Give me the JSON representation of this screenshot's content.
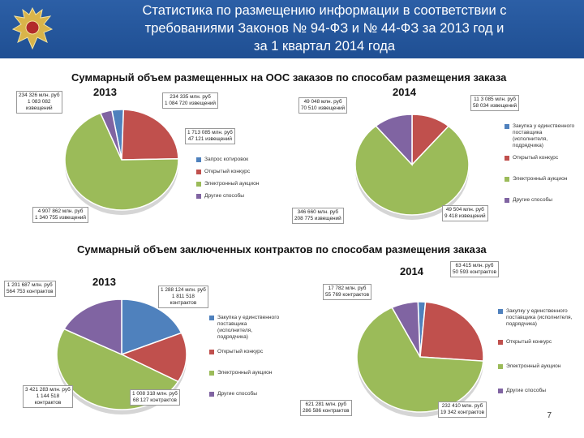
{
  "header": {
    "title_line1": "Статистика по размещению информации в соответствии с",
    "title_line2": "требованиями Законов № 94-ФЗ и № 44-ФЗ за 2013 год и",
    "title_line3": "за 1 квартал 2014 года"
  },
  "colors": {
    "header_bg": "#2c5fa6",
    "series": [
      "#4f81bd",
      "#c0504d",
      "#9bbb59",
      "#8064a2"
    ]
  },
  "section1": {
    "title": "Суммарный объем размещенных на ООС заказов по способам размещения заказа",
    "year_left": "2013",
    "year_right": "2014",
    "legend_left": [
      "Запрос котировок",
      "Открытый конкурс",
      "Электронный аукцион",
      "Другие способы"
    ],
    "legend_right": [
      "Закупка у единственного поставщика (исполнителя, подрядчика)",
      "Открытый конкурс",
      "Электронный аукцион",
      "Другие способы"
    ],
    "labels_left": [
      "234 326 млн. руб\n1 083 082\nизвещений",
      "234 335 млн. руб\n1 084 720 извещений",
      "1 713 085 млн. руб\n47 121 извещений",
      "4 907 862 млн. руб\n1 340 755 извещений"
    ],
    "labels_right": [
      "49 048 млн. руб\n70 510 извещений",
      "11 3 085 млн. руб\n58 034 извещений",
      "346 660 млн. руб\n208 775 извещений",
      "49 504 млн. руб\n9 418 извещений"
    ]
  },
  "section2": {
    "title": "Суммарный объем заключенных контрактов по способам размещения заказа",
    "year_left": "2013",
    "year_right": "2014",
    "legend_left": [
      "Закупка у единственного поставщика (исполнителя, подрядчика)",
      "Открытый конкурс",
      "Электронный аукцион",
      "Другие способы"
    ],
    "legend_right": [
      "Закупку у единственного поставщика (исполнителя, подрядчика)",
      "Открытый конкурс",
      "Электронный аукцион",
      "Другие способы"
    ],
    "labels_left": [
      "1 201 687 млн. руб\n564 753 контрактов",
      "1 288 124 млн. руб\n1 811 518\nконтрактов",
      "3 421 283 млн. руб\n1 144 518\nконтрактов",
      "1 008 318 млн. руб\n68 127 контрактов"
    ],
    "labels_right": [
      "63 415 млн. руб\n50 593 контрактов",
      "17 782 млн. руб\n55 769 контрактов",
      "621 281 млн. руб\n286 586 контрактов",
      "232 410 млн. руб\n19 342 контрактов"
    ]
  },
  "chart_data": [
    {
      "type": "pie",
      "title": "Суммарный объем размещенных на ООС заказов по способам размещения заказа",
      "subtitle": "2013",
      "categories": [
        "Запрос котировок",
        "Открытый конкурс",
        "Электронный аукцион",
        "Другие способы"
      ],
      "values": [
        234326,
        1713085,
        4907862,
        234335
      ]
    },
    {
      "type": "pie",
      "title": "Суммарный объем размещенных на ООС заказов по способам размещения заказа",
      "subtitle": "2014",
      "categories": [
        "Закупка у единственного поставщика (исполнителя, подрядчика)",
        "Открытый конкурс",
        "Электронный аукцион",
        "Другие способы"
      ],
      "values": [
        11,
        49504,
        346660,
        49048
      ]
    },
    {
      "type": "pie",
      "title": "Суммарный объем заключенных контрактов по способам размещения заказа",
      "subtitle": "2013",
      "categories": [
        "Закупка у единственного поставщика (исполнителя, подрядчика)",
        "Открытый конкурс",
        "Электронный аукцион",
        "Другие способы"
      ],
      "values": [
        1288124,
        1008318,
        3421283,
        1201687
      ]
    },
    {
      "type": "pie",
      "title": "Суммарный объем заключенных контрактов по способам размещения заказа",
      "subtitle": "2014",
      "categories": [
        "Закупку у единственного поставщика (исполнителя, подрядчика)",
        "Открытый конкурс",
        "Электронный аукцион",
        "Другие способы"
      ],
      "values": [
        17782,
        232410,
        621281,
        63415
      ]
    }
  ],
  "page_number": "7"
}
